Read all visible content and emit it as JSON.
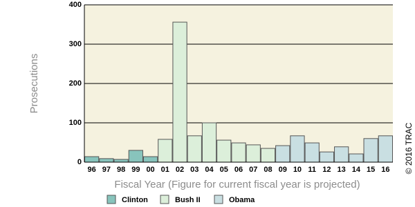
{
  "chart_data": {
    "type": "bar",
    "y_label": "Prosecutions",
    "x_label": "Fiscal Year (Figure for current fiscal year is projected)",
    "copyright": "© 2016 TRAC",
    "categories": [
      "96",
      "97",
      "98",
      "99",
      "00",
      "01",
      "02",
      "03",
      "04",
      "05",
      "06",
      "07",
      "08",
      "09",
      "10",
      "11",
      "12",
      "13",
      "14",
      "15",
      "16"
    ],
    "series": [
      {
        "name": "Clinton",
        "color": "#88c4bc",
        "values": [
          14,
          9,
          7,
          30,
          14,
          null,
          null,
          null,
          null,
          null,
          null,
          null,
          null,
          null,
          null,
          null,
          null,
          null,
          null,
          null,
          null
        ]
      },
      {
        "name": "Bush II",
        "color": "#dcefda",
        "values": [
          null,
          null,
          null,
          null,
          null,
          58,
          356,
          67,
          100,
          56,
          49,
          44,
          35,
          null,
          null,
          null,
          null,
          null,
          null,
          null,
          null
        ]
      },
      {
        "name": "Obama",
        "color": "#c9dfe2",
        "values": [
          null,
          null,
          null,
          null,
          null,
          null,
          null,
          null,
          null,
          null,
          null,
          null,
          null,
          42,
          67,
          49,
          26,
          39,
          21,
          60,
          67
        ]
      }
    ],
    "ylim": [
      0,
      400
    ],
    "yticks": [
      0,
      100,
      200,
      300,
      400
    ],
    "grid": true
  }
}
